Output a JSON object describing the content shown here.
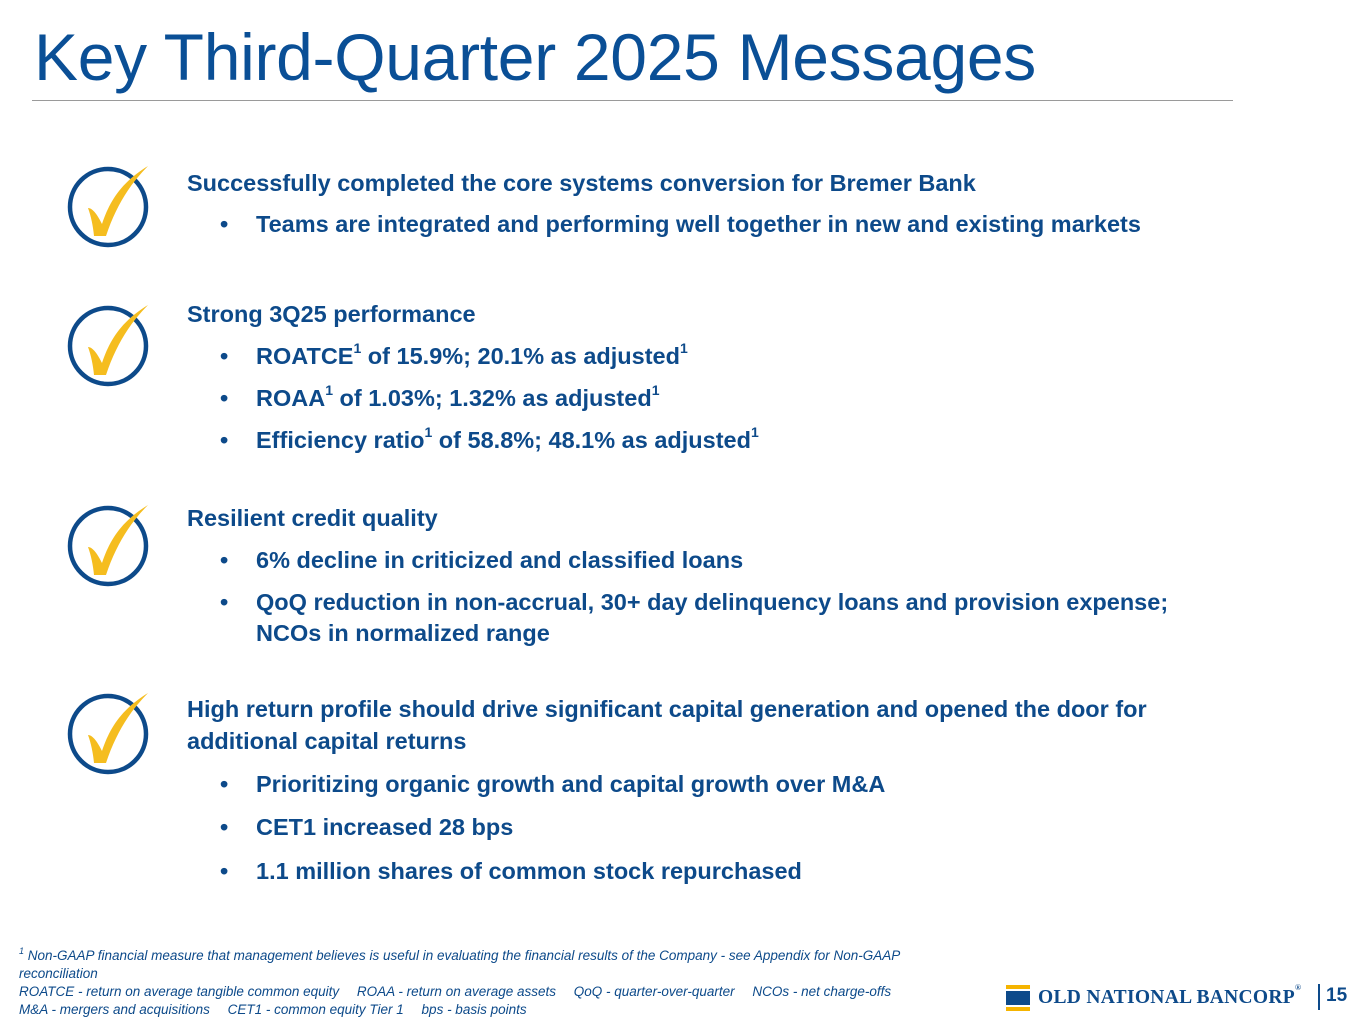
{
  "title": "Key Third-Quarter 2025 Messages",
  "colors": {
    "brand_blue": "#0d4a8a",
    "check_gold": "#f5bd1f",
    "rule_gray": "#9a9a9a"
  },
  "icon": "checkmark-circle-icon",
  "messages": [
    {
      "heading": "Successfully completed the core systems conversion for Bremer Bank",
      "bullets": [
        {
          "text": "Teams are integrated and performing well together in new and existing markets"
        }
      ]
    },
    {
      "heading": "Strong 3Q25 performance",
      "bullets": [
        {
          "a": "ROATCE",
          "sup1": "1",
          "b": " of 15.9%; 20.1% as adjusted",
          "sup2": "1"
        },
        {
          "a": "ROAA",
          "sup1": "1",
          "b": " of 1.03%; 1.32% as adjusted",
          "sup2": "1"
        },
        {
          "a": "Efficiency ratio",
          "sup1": "1",
          "b": " of 58.8%; 48.1% as adjusted",
          "sup2": "1"
        }
      ]
    },
    {
      "heading": "Resilient credit quality",
      "bullets": [
        {
          "text": "6% decline in criticized and classified loans"
        },
        {
          "text": "QoQ reduction in non-accrual, 30+ day delinquency loans and provision expense; NCOs in normalized range"
        }
      ]
    },
    {
      "heading": "High return profile should drive significant capital generation and opened the door for additional capital returns",
      "bullets": [
        {
          "text": "Prioritizing organic growth and capital growth over M&A"
        },
        {
          "text": "CET1 increased 28 bps"
        },
        {
          "text": "1.1 million shares of common stock repurchased"
        }
      ]
    }
  ],
  "bullet_char": "•",
  "footnotes": {
    "note_marker": "1",
    "note_text": " Non-GAAP financial measure that management believes is useful in evaluating the financial results of the Company - see Appendix for Non-GAAP reconciliation",
    "abbreviations_line1": [
      "ROATCE - return on average tangible common equity",
      "ROAA - return on average assets",
      "QoQ - quarter-over-quarter",
      "NCOs - net charge-offs"
    ],
    "abbreviations_line2": [
      "M&A - mergers and acquisitions",
      "CET1 - common equity Tier 1",
      "bps - basis points"
    ]
  },
  "logo": {
    "text": "OLD NATIONAL BANCORP",
    "mark": "®"
  },
  "page_number": "15"
}
